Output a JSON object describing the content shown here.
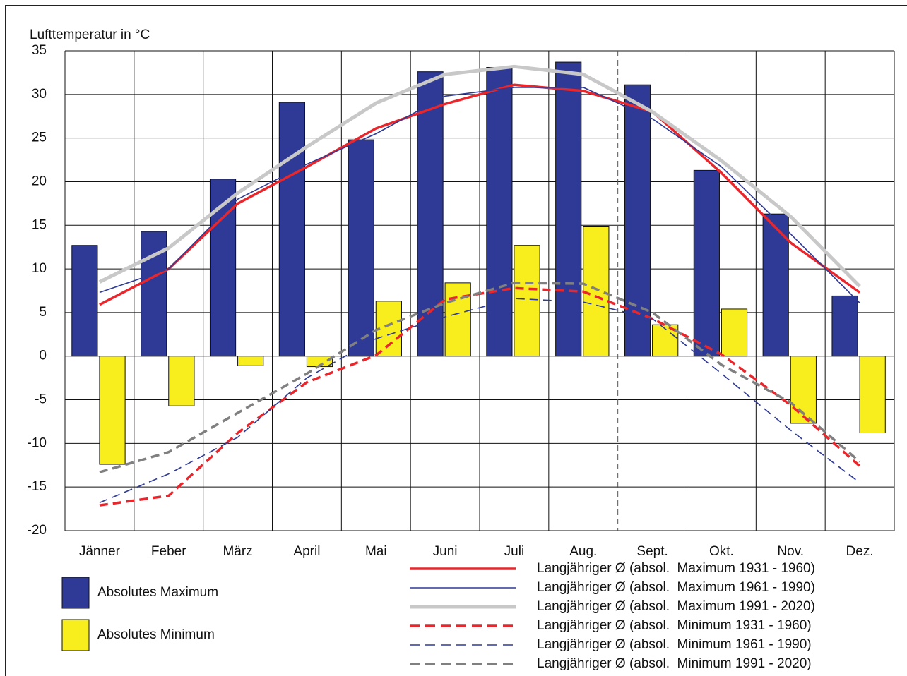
{
  "chart_data": {
    "type": "bar",
    "y_axis_label": "Lufttemperatur in °C",
    "categories": [
      "Jänner",
      "Feber",
      "März",
      "April",
      "Mai",
      "Juni",
      "Juli",
      "Aug.",
      "Sept.",
      "Okt.",
      "Nov.",
      "Dez."
    ],
    "ylim": [
      -20,
      35
    ],
    "yticks": [
      -20,
      -15,
      -10,
      -5,
      0,
      5,
      10,
      15,
      20,
      25,
      30,
      35
    ],
    "grid": true,
    "series": [
      {
        "name": "Absolutes Maximum",
        "mark": "bar",
        "color": "#2e3a95",
        "values": [
          12.7,
          14.3,
          20.3,
          29.1,
          24.8,
          32.6,
          33.1,
          33.7,
          31.1,
          21.3,
          16.3,
          6.9
        ]
      },
      {
        "name": "Absolutes Minimum",
        "mark": "bar",
        "color": "#f8ee1e",
        "values": [
          -12.4,
          -5.7,
          -1.1,
          -1.2,
          6.3,
          8.4,
          12.7,
          14.9,
          3.6,
          5.4,
          -7.7,
          -8.8
        ]
      },
      {
        "name": "Langjähriger Ø (absol.  Maximum 1931 - 1960)",
        "mark": "line",
        "dash": false,
        "weight": "medium",
        "color": "#e8262b",
        "values": [
          5.9,
          10.0,
          17.5,
          21.7,
          26.1,
          28.9,
          31.1,
          30.4,
          28.0,
          21.0,
          13.0,
          7.3
        ]
      },
      {
        "name": "Langjähriger Ø (absol.  Maximum 1961 - 1990)",
        "mark": "line",
        "dash": false,
        "weight": "light",
        "color": "#2e3a95",
        "values": [
          7.3,
          10.0,
          18.0,
          22.0,
          25.5,
          29.8,
          30.8,
          30.8,
          27.2,
          21.7,
          14.0,
          6.1
        ]
      },
      {
        "name": "Langjähriger Ø (absol.  Maximum 1991 - 2020)",
        "mark": "line",
        "dash": false,
        "weight": "heavy",
        "color": "#c8c8c8",
        "values": [
          8.5,
          12.4,
          18.7,
          24.0,
          29.0,
          32.3,
          33.2,
          32.3,
          28.0,
          22.4,
          16.0,
          8.0
        ]
      },
      {
        "name": "Langjähriger Ø (absol.  Minimum 1931 - 1960)",
        "mark": "line",
        "dash": true,
        "weight": "medium",
        "color": "#e8262b",
        "values": [
          -17.1,
          -16.0,
          -8.8,
          -3.0,
          0.1,
          6.5,
          7.8,
          7.4,
          4.3,
          0.2,
          -5.6,
          -12.6
        ]
      },
      {
        "name": "Langjähriger Ø (absol.  Minimum 1961 - 1990)",
        "mark": "line",
        "dash": true,
        "weight": "light",
        "color": "#2e3a95",
        "values": [
          -16.8,
          -13.5,
          -9.3,
          -2.5,
          2.0,
          4.5,
          6.6,
          6.2,
          4.3,
          -2.0,
          -8.5,
          -14.5
        ]
      },
      {
        "name": "Langjähriger Ø (absol.  Minimum 1991 - 2020)",
        "mark": "line",
        "dash": true,
        "weight": "medium",
        "color": "#808080",
        "values": [
          -13.3,
          -11.0,
          -6.5,
          -2.0,
          3.0,
          6.1,
          8.4,
          8.3,
          5.0,
          -1.0,
          -5.3,
          -12.1
        ]
      }
    ]
  }
}
